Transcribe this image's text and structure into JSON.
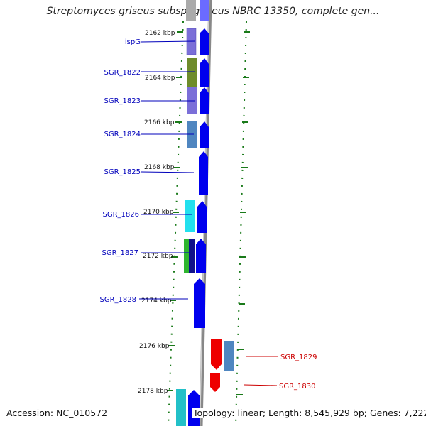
{
  "title": "Streptomyces griseus subsp. griseus NBRC 13350, complete gen...",
  "footer": {
    "accession": "Accession: NC_010572",
    "topology": "Topology: linear; Length: 8,545,929 bp; Genes: 7,222"
  },
  "colors": {
    "gene_strand_forward": "#0000ee",
    "gene_strand_reverse": "#ee0000",
    "label_forward": "#0000bb",
    "label_reverse": "#cc0000",
    "tick": "#1a7a1a",
    "backbone": "#888888"
  },
  "ticks": [
    "2162 kbp",
    "2164 kbp",
    "2166 kbp",
    "2168 kbp",
    "2170 kbp",
    "2172 kbp",
    "2174 kbp",
    "2176 kbp",
    "2178 kbp"
  ],
  "genes": [
    {
      "label": "ispG",
      "strand": "forward",
      "feature_color": "#7b6fd8"
    },
    {
      "label": "SGR_1822",
      "strand": "forward",
      "feature_color": "#6e8c2a"
    },
    {
      "label": "SGR_1823",
      "strand": "forward",
      "feature_color": "#7b6fd8"
    },
    {
      "label": "SGR_1824",
      "strand": "forward",
      "feature_color": "#4f86c0"
    },
    {
      "label": "SGR_1825",
      "strand": "forward",
      "feature_color": ""
    },
    {
      "label": "SGR_1826",
      "strand": "forward",
      "feature_color": "#22e0ee"
    },
    {
      "label": "SGR_1827",
      "strand": "forward",
      "feature_color": "#2fb52f"
    },
    {
      "label": "SGR_1828",
      "strand": "forward",
      "feature_color": ""
    },
    {
      "label": "SGR_1829",
      "strand": "reverse",
      "feature_color": "#4f86c0"
    },
    {
      "label": "SGR_1830",
      "strand": "reverse",
      "feature_color": ""
    }
  ]
}
